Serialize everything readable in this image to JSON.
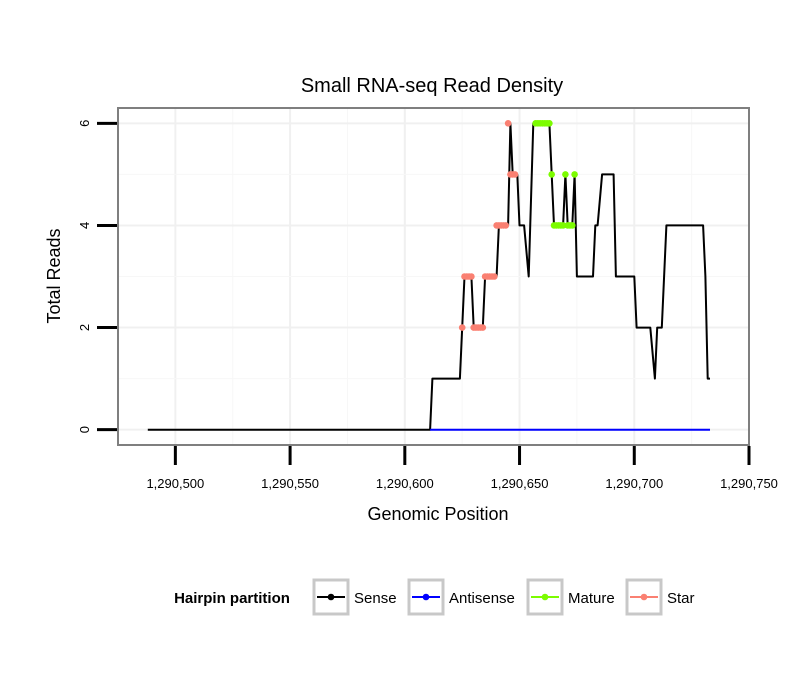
{
  "chart_data": {
    "type": "line",
    "title": "Small RNA-seq Read Density",
    "xlabel": "Genomic Position",
    "ylabel": "Total Reads",
    "xlim": [
      1290475,
      1290750
    ],
    "ylim": [
      -0.3,
      6.3
    ],
    "x_ticks": [
      1290500,
      1290550,
      1290600,
      1290650,
      1290700,
      1290750
    ],
    "x_tick_labels": [
      "1,290,500",
      "1,290,550",
      "1,290,600",
      "1,290,650",
      "1,290,700",
      "1,290,750"
    ],
    "y_ticks": [
      0,
      2,
      4,
      6
    ],
    "y_tick_labels": [
      "0",
      "2",
      "4",
      "6"
    ],
    "grid": true,
    "legend": {
      "title": "Hairpin partition",
      "position": "bottom",
      "entries": [
        {
          "name": "Sense",
          "color": "#000000"
        },
        {
          "name": "Antisense",
          "color": "#0000ff"
        },
        {
          "name": "Mature",
          "color": "#7cfc00"
        },
        {
          "name": "Star",
          "color": "#fa8072"
        }
      ]
    },
    "series": [
      {
        "name": "Sense",
        "color": "#000000",
        "style": "line",
        "points": [
          [
            1290488,
            0
          ],
          [
            1290611,
            0
          ],
          [
            1290612,
            1
          ],
          [
            1290624,
            1
          ],
          [
            1290625,
            2
          ],
          [
            1290626,
            3
          ],
          [
            1290629,
            3
          ],
          [
            1290630,
            2
          ],
          [
            1290634,
            2
          ],
          [
            1290635,
            3
          ],
          [
            1290640,
            3
          ],
          [
            1290641,
            4
          ],
          [
            1290645,
            4
          ],
          [
            1290646,
            6
          ],
          [
            1290647,
            5
          ],
          [
            1290649,
            5
          ],
          [
            1290650,
            4
          ],
          [
            1290652,
            4
          ],
          [
            1290654,
            3
          ],
          [
            1290656,
            6
          ],
          [
            1290663,
            6
          ],
          [
            1290664,
            5
          ],
          [
            1290665,
            4
          ],
          [
            1290669,
            4
          ],
          [
            1290670,
            5
          ],
          [
            1290671,
            4
          ],
          [
            1290673,
            4
          ],
          [
            1290674,
            5
          ],
          [
            1290675,
            3
          ],
          [
            1290682,
            3
          ],
          [
            1290683,
            4
          ],
          [
            1290684,
            4
          ],
          [
            1290686,
            5
          ],
          [
            1290691,
            5
          ],
          [
            1290692,
            3
          ],
          [
            1290700,
            3
          ],
          [
            1290701,
            2
          ],
          [
            1290707,
            2
          ],
          [
            1290709,
            1
          ],
          [
            1290710,
            2
          ],
          [
            1290712,
            2
          ],
          [
            1290714,
            4
          ],
          [
            1290730,
            4
          ],
          [
            1290731,
            3
          ],
          [
            1290732,
            1
          ],
          [
            1290733,
            1
          ]
        ]
      },
      {
        "name": "Antisense",
        "color": "#0000ff",
        "style": "line",
        "points": [
          [
            1290611,
            0
          ],
          [
            1290733,
            0
          ]
        ]
      },
      {
        "name": "Mature",
        "color": "#7cfc00",
        "style": "points",
        "points": [
          [
            1290657,
            6
          ],
          [
            1290658,
            6
          ],
          [
            1290659,
            6
          ],
          [
            1290660,
            6
          ],
          [
            1290661,
            6
          ],
          [
            1290662,
            6
          ],
          [
            1290663,
            6
          ],
          [
            1290664,
            5
          ],
          [
            1290665,
            4
          ],
          [
            1290666,
            4
          ],
          [
            1290667,
            4
          ],
          [
            1290668,
            4
          ],
          [
            1290669,
            4
          ],
          [
            1290670,
            5
          ],
          [
            1290671,
            4
          ],
          [
            1290672,
            4
          ],
          [
            1290673,
            4
          ],
          [
            1290674,
            5
          ]
        ]
      },
      {
        "name": "Star",
        "color": "#fa8072",
        "style": "points",
        "points": [
          [
            1290625,
            2
          ],
          [
            1290626,
            3
          ],
          [
            1290627,
            3
          ],
          [
            1290628,
            3
          ],
          [
            1290629,
            3
          ],
          [
            1290630,
            2
          ],
          [
            1290631,
            2
          ],
          [
            1290632,
            2
          ],
          [
            1290633,
            2
          ],
          [
            1290634,
            2
          ],
          [
            1290635,
            3
          ],
          [
            1290636,
            3
          ],
          [
            1290637,
            3
          ],
          [
            1290638,
            3
          ],
          [
            1290639,
            3
          ],
          [
            1290640,
            4
          ],
          [
            1290641,
            4
          ],
          [
            1290642,
            4
          ],
          [
            1290643,
            4
          ],
          [
            1290644,
            4
          ],
          [
            1290645,
            6
          ],
          [
            1290646,
            5
          ],
          [
            1290647,
            5
          ],
          [
            1290648,
            5
          ]
        ]
      }
    ]
  }
}
